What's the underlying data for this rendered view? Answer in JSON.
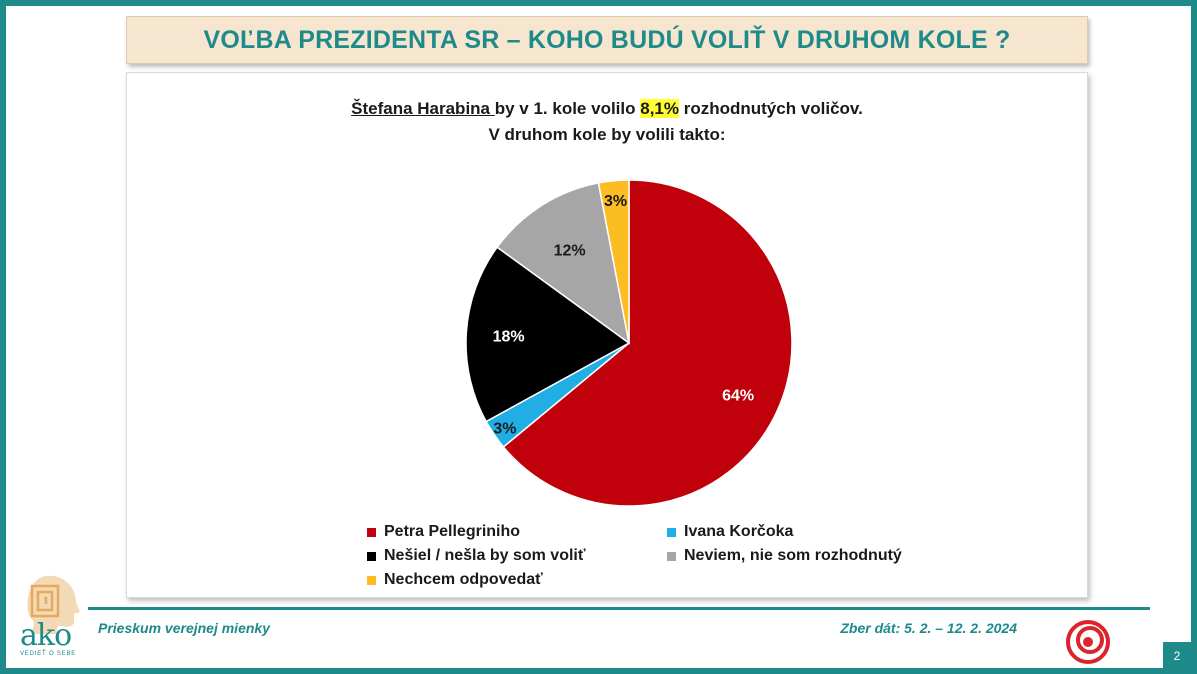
{
  "slide": {
    "title": "VOĽBA PREZIDENTA SR – KOHO BUDÚ VOLIŤ V DRUHOM KOLE ?",
    "subtitle_part1": "Štefana Harabina ",
    "subtitle_part2": "by v 1. kole volilo ",
    "subtitle_highlight": "8,1%",
    "subtitle_part3": " rozhodnutých voličov.",
    "subtitle_line2": "V druhom kole by volili takto:"
  },
  "footer": {
    "left_text": "Prieskum verejnej mienky",
    "right_text": "Zber dát: 5. 2. – 12. 2. 2024",
    "page_number": "2"
  },
  "logos": {
    "ako_name": "ako",
    "ako_tagline": "VEDIEŤ O SEBE",
    "ako_icon": "ako-head-meander-icon",
    "brand_icon": "red-spiral-logo-icon"
  },
  "colors": {
    "accent": "#1f8a8a",
    "title_background": "#f7e6cf",
    "highlight": "#ffff33"
  },
  "chart_data": {
    "type": "pie",
    "start_angle_deg": 0,
    "direction": "clockwise",
    "slices": [
      {
        "label": "Petra Pellegriniho",
        "value": 64,
        "value_label": "64%",
        "color": "#c0000b",
        "label_color": "#ffffff"
      },
      {
        "label": "Ivana Korčoka",
        "value": 3,
        "value_label": "3%",
        "color": "#21aee5",
        "label_color": "#1a1a1a"
      },
      {
        "label": "Nešiel / nešla by som voliť",
        "value": 18,
        "value_label": "18%",
        "color": "#000000",
        "label_color": "#ffffff"
      },
      {
        "label": "Neviem, nie som rozhodnutý",
        "value": 12,
        "value_label": "12%",
        "color": "#a6a6a6",
        "label_color": "#1a1a1a"
      },
      {
        "label": "Nechcem odpovedať",
        "value": 3,
        "value_label": "3%",
        "color": "#fbbd21",
        "label_color": "#1a1a1a"
      }
    ],
    "legend_placement": "bottom"
  }
}
